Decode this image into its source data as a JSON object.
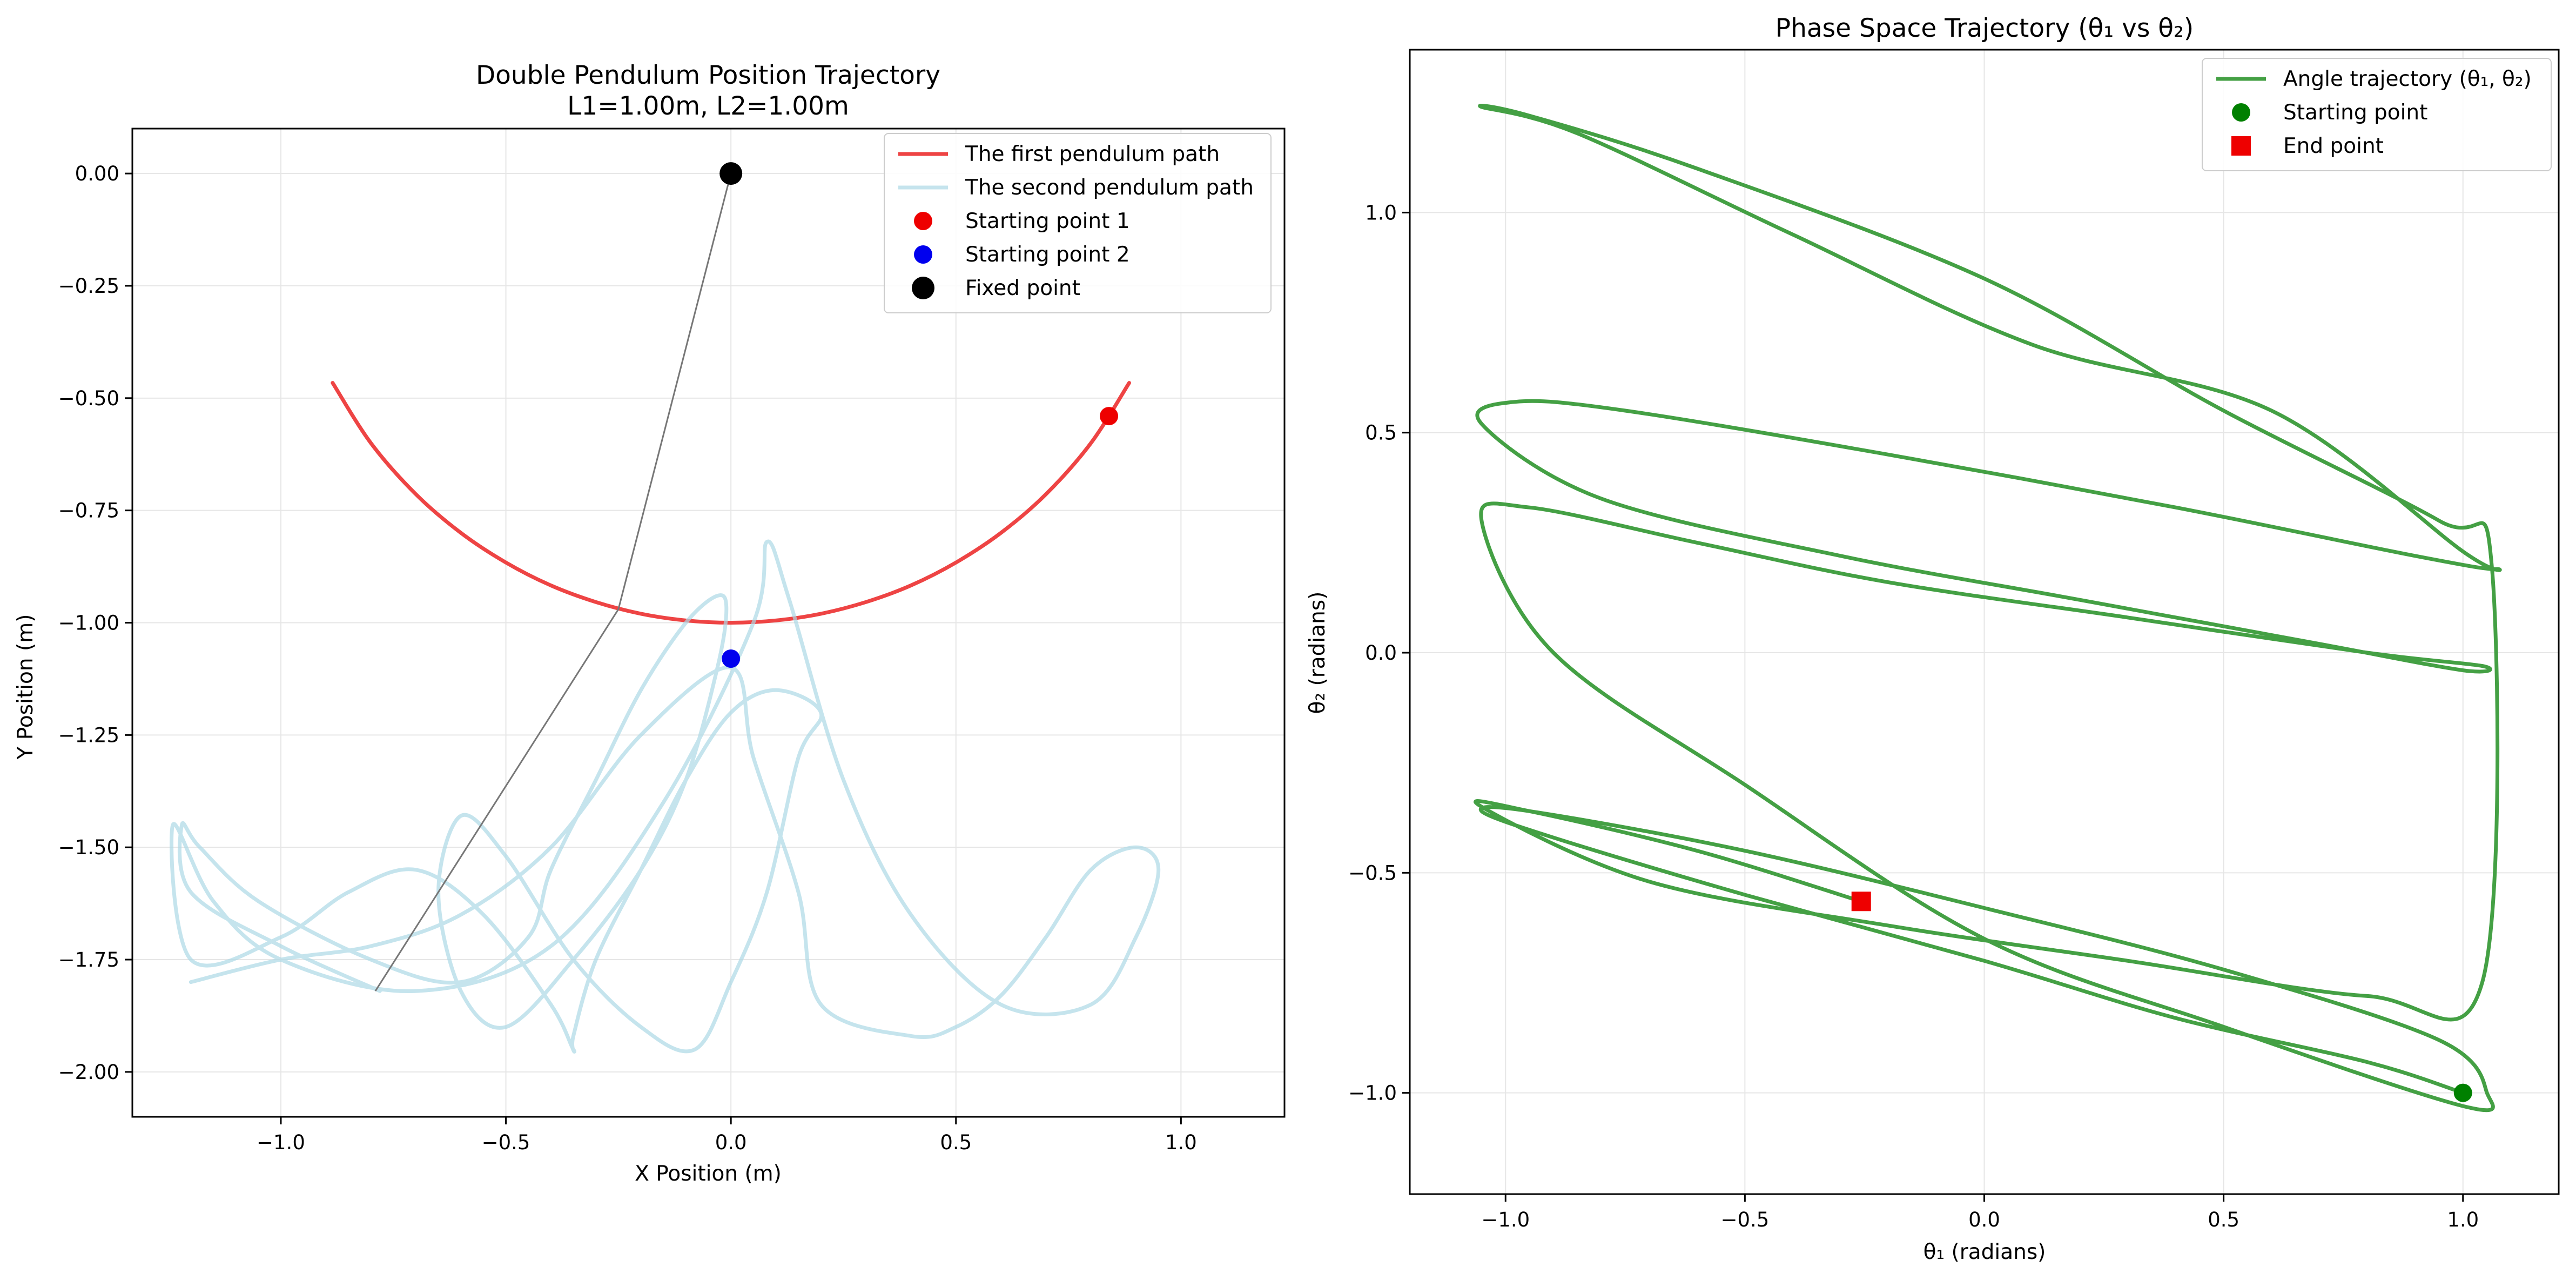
{
  "chart_data": [
    {
      "type": "line",
      "title": "Double Pendulum Position Trajectory",
      "subtitle": "L1=1.00m, L2=1.00m",
      "xlabel": "X Position (m)",
      "ylabel": "Y Position (m)",
      "xlim": [
        -1.33,
        1.23
      ],
      "ylim": [
        -2.1,
        0.1
      ],
      "xticks": [
        -1.0,
        -0.5,
        0.0,
        0.5,
        1.0
      ],
      "xtick_labels": [
        "−1.0",
        "−0.5",
        "0.0",
        "0.5",
        "1.0"
      ],
      "yticks": [
        0.0,
        -0.25,
        -0.5,
        -0.75,
        -1.0,
        -1.25,
        -1.5,
        -1.75,
        -2.0
      ],
      "ytick_labels": [
        "0.00",
        "−0.25",
        "−0.50",
        "−0.75",
        "−1.00",
        "−1.25",
        "−1.50",
        "−1.75",
        "−2.00"
      ],
      "grid": true,
      "legend_position": "top-right",
      "pendulum_lengths": [
        1.0,
        1.0
      ],
      "series": [
        {
          "name": "The first pendulum path",
          "kind": "line",
          "color": "#ee4444",
          "x": [
            -0.885,
            -0.8,
            -0.7,
            -0.6,
            -0.5,
            -0.4,
            -0.3,
            -0.2,
            -0.1,
            0.0,
            0.1,
            0.2,
            0.3,
            0.4,
            0.5,
            0.6,
            0.7,
            0.8,
            0.885
          ],
          "y": [
            -0.466,
            -0.6,
            -0.714,
            -0.8,
            -0.866,
            -0.917,
            -0.954,
            -0.98,
            -0.995,
            -1.0,
            -0.995,
            -0.98,
            -0.954,
            -0.917,
            -0.866,
            -0.8,
            -0.714,
            -0.6,
            -0.466
          ]
        },
        {
          "name": "The second pendulum path",
          "kind": "line",
          "color": "#add8e6",
          "x": [
            -0.78,
            -1.0,
            -1.2,
            -1.22,
            -1.18,
            -1.05,
            -0.8,
            -0.6,
            -0.45,
            -0.4,
            -0.3,
            -0.2,
            -0.1,
            -0.03,
            -0.01,
            -0.03,
            -0.1,
            -0.2,
            -0.35,
            -0.5,
            -0.6,
            -0.65,
            -0.6,
            -0.5,
            -0.35,
            -0.2,
            -0.08,
            0.0,
            0.08,
            0.15,
            0.2,
            0.1,
            0.0,
            -0.1,
            -0.2,
            -0.3,
            -0.35,
            -0.35,
            -0.4,
            -0.55,
            -0.7,
            -0.85,
            -1.0,
            -1.2,
            -1.24,
            -1.15,
            -1.0,
            -0.7,
            -0.4,
            -0.15,
            0.05,
            0.08,
            0.13,
            0.25,
            0.4,
            0.6,
            0.8,
            0.9,
            0.95,
            0.9,
            0.8,
            0.7,
            0.6,
            0.5,
            0.4,
            0.2,
            0.15,
            0.05,
            0.0,
            -0.2,
            -0.4,
            -0.6,
            -0.8,
            -1.0,
            -1.2
          ],
          "y": [
            -1.82,
            -1.72,
            -1.6,
            -1.45,
            -1.5,
            -1.62,
            -1.75,
            -1.8,
            -1.7,
            -1.55,
            -1.35,
            -1.15,
            -1.0,
            -0.94,
            -0.97,
            -1.1,
            -1.35,
            -1.55,
            -1.75,
            -1.9,
            -1.82,
            -1.6,
            -1.43,
            -1.52,
            -1.75,
            -1.9,
            -1.95,
            -1.8,
            -1.6,
            -1.3,
            -1.2,
            -1.15,
            -1.2,
            -1.35,
            -1.55,
            -1.75,
            -1.92,
            -1.95,
            -1.85,
            -1.65,
            -1.55,
            -1.6,
            -1.7,
            -1.75,
            -1.45,
            -1.62,
            -1.75,
            -1.82,
            -1.72,
            -1.4,
            -1.0,
            -0.82,
            -0.95,
            -1.35,
            -1.65,
            -1.85,
            -1.85,
            -1.7,
            -1.55,
            -1.5,
            -1.55,
            -1.7,
            -1.83,
            -1.9,
            -1.92,
            -1.85,
            -1.6,
            -1.3,
            -1.1,
            -1.25,
            -1.5,
            -1.65,
            -1.72,
            -1.75,
            -1.8
          ]
        },
        {
          "name": "Starting point 1",
          "kind": "marker",
          "color": "#ee0000",
          "x": [
            0.84
          ],
          "y": [
            -0.54
          ]
        },
        {
          "name": "Starting point 2",
          "kind": "marker",
          "color": "#0000ee",
          "x": [
            0.0
          ],
          "y": [
            -1.08
          ]
        },
        {
          "name": "Fixed point",
          "kind": "marker",
          "color": "#000000",
          "x": [
            0.0
          ],
          "y": [
            0.0
          ]
        },
        {
          "name": "",
          "kind": "rod",
          "color": "#777777",
          "x": [
            0.0,
            -0.25,
            -0.79
          ],
          "y": [
            0.0,
            -0.97,
            -1.82
          ]
        }
      ]
    },
    {
      "type": "line",
      "title": "Phase Space Trajectory (θ₁ vs θ₂)",
      "xlabel": "θ₁ (radians)",
      "ylabel": "θ₂ (radians)",
      "xlim": [
        -1.2,
        1.2
      ],
      "ylim": [
        -1.23,
        1.37
      ],
      "xticks": [
        -1.0,
        -0.5,
        0.0,
        0.5,
        1.0
      ],
      "xtick_labels": [
        "−1.0",
        "−0.5",
        "0.0",
        "0.5",
        "1.0"
      ],
      "yticks": [
        -1.0,
        -0.5,
        0.0,
        0.5,
        1.0
      ],
      "ytick_labels": [
        "−1.0",
        "−0.5",
        "0.0",
        "0.5",
        "1.0"
      ],
      "grid": true,
      "legend_position": "top-right",
      "series": [
        {
          "name": "Angle trajectory (θ₁, θ₂)",
          "kind": "line",
          "color": "#44a044",
          "x": [
            1.0,
            0.8,
            0.4,
            0.0,
            -0.5,
            -0.9,
            -1.05,
            -0.95,
            -0.5,
            0.0,
            0.5,
            0.95,
            1.05,
            1.0,
            0.5,
            0.0,
            -0.5,
            -0.9,
            -1.05,
            -0.95,
            -0.6,
            -0.2,
            0.3,
            0.8,
            1.04,
            1.0,
            0.7,
            0.2,
            -0.3,
            -0.8,
            -1.05,
            -0.98,
            -0.75,
            -0.2,
            0.4,
            0.9,
            1.07,
            1.0,
            0.6,
            0.1,
            -0.4,
            -0.85,
            -1.05,
            -0.95,
            -0.6,
            0.0,
            0.5,
            0.95,
            1.06,
            1.04,
            0.8,
            0.3,
            -0.2,
            -0.7,
            -1.05,
            -0.95,
            -0.6,
            -0.257
          ],
          "y": [
            -1.0,
            -0.93,
            -0.83,
            -0.7,
            -0.55,
            -0.42,
            -0.36,
            -0.36,
            -0.45,
            -0.58,
            -0.72,
            -0.88,
            -1.0,
            -1.03,
            -0.85,
            -0.65,
            -0.3,
            0.0,
            0.3,
            0.33,
            0.25,
            0.16,
            0.08,
            0.0,
            -0.03,
            -0.04,
            0.02,
            0.12,
            0.22,
            0.35,
            0.52,
            0.57,
            0.55,
            0.45,
            0.33,
            0.22,
            0.19,
            0.23,
            0.55,
            0.7,
            0.95,
            1.18,
            1.24,
            1.22,
            1.1,
            0.85,
            0.55,
            0.3,
            0.2,
            -0.75,
            -0.78,
            -0.7,
            -0.62,
            -0.52,
            -0.35,
            -0.36,
            -0.45,
            -0.565
          ]
        },
        {
          "name": "Starting point",
          "kind": "marker",
          "color": "#008000",
          "x": [
            1.0
          ],
          "y": [
            -1.0
          ]
        },
        {
          "name": "End point",
          "kind": "marker-square",
          "color": "#ee0000",
          "x": [
            -0.257
          ],
          "y": [
            -0.565
          ]
        }
      ]
    }
  ]
}
